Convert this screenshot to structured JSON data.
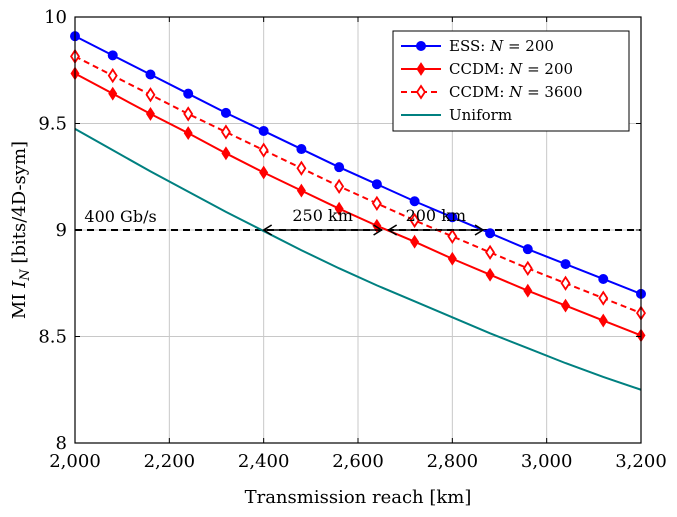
{
  "chart_data": {
    "type": "line",
    "xlabel": "Transmission reach [km]",
    "ylabel": "MI I_N [bits/4D-sym]",
    "xlim": [
      2000,
      3200
    ],
    "ylim": [
      8,
      10
    ],
    "xticks": [
      2000,
      2200,
      2400,
      2600,
      2800,
      3000,
      3200
    ],
    "xtick_labels": [
      "2,000",
      "2,200",
      "2,400",
      "2,600",
      "2,800",
      "3,000",
      "3,200"
    ],
    "yticks": [
      8,
      8.5,
      9,
      9.5,
      10
    ],
    "ytick_labels": [
      "8",
      "8.5",
      "9",
      "9.5",
      "10"
    ],
    "grid": true,
    "legend_position": "top-right",
    "x": [
      2000,
      2080,
      2160,
      2240,
      2320,
      2400,
      2480,
      2560,
      2640,
      2720,
      2800,
      2880,
      2960,
      3040,
      3120,
      3200
    ],
    "series": [
      {
        "name": "ESS: N = 200",
        "color": "#0000ff",
        "style": "solid",
        "marker": "circle-filled",
        "values": [
          9.91,
          9.82,
          9.73,
          9.64,
          9.55,
          9.465,
          9.38,
          9.295,
          9.215,
          9.135,
          9.06,
          8.985,
          8.91,
          8.84,
          8.77,
          8.7
        ]
      },
      {
        "name": "CCDM: N = 200",
        "color": "#ff0000",
        "style": "solid",
        "marker": "diamond-filled",
        "values": [
          9.735,
          9.64,
          9.545,
          9.455,
          9.36,
          9.27,
          9.185,
          9.1,
          9.02,
          8.945,
          8.865,
          8.79,
          8.715,
          8.645,
          8.575,
          8.505
        ]
      },
      {
        "name": "CCDM: N = 3600",
        "color": "#ff0000",
        "style": "dashed",
        "marker": "diamond-open",
        "values": [
          9.815,
          9.725,
          9.635,
          9.545,
          9.46,
          9.375,
          9.29,
          9.205,
          9.125,
          9.045,
          8.97,
          8.895,
          8.82,
          8.75,
          8.68,
          8.61
        ]
      },
      {
        "name": "Uniform",
        "color": "#008080",
        "style": "solid",
        "marker": "none",
        "values": [
          9.475,
          9.375,
          9.275,
          9.18,
          9.085,
          8.995,
          8.905,
          8.82,
          8.74,
          8.665,
          8.59,
          8.515,
          8.445,
          8.375,
          8.31,
          8.25
        ]
      }
    ],
    "threshold": {
      "y": 9,
      "label": "400 Gb/s",
      "style": "dashed",
      "color": "#000000"
    },
    "annotations": [
      {
        "label": "250 km",
        "x_from": 2400,
        "x_to": 2650,
        "y": 9
      },
      {
        "label": "200 km",
        "x_from": 2665,
        "x_to": 2865,
        "y": 9
      }
    ]
  }
}
